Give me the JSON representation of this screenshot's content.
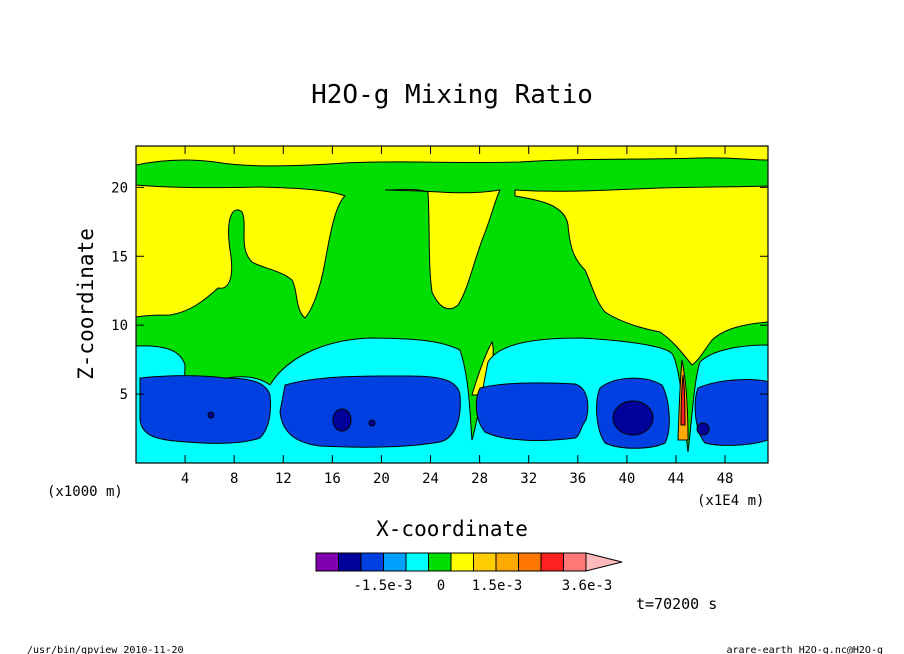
{
  "chart_data": {
    "type": "contour",
    "title": "H2O-g Mixing Ratio",
    "xlabel": "X-coordinate",
    "ylabel": "Z-coordinate",
    "x_unit_label": "(x1000 m)",
    "x_scale_label": "(x1E4 m)",
    "xlim": [
      0,
      51.5
    ],
    "ylim": [
      0,
      23
    ],
    "x_ticks": [
      4,
      8,
      12,
      16,
      20,
      24,
      28,
      32,
      36,
      40,
      44,
      48
    ],
    "y_ticks": [
      5,
      10,
      15,
      20
    ],
    "colorbar": {
      "colors": [
        "#8000b0",
        "#00009a",
        "#0040e0",
        "#00a0ff",
        "#00ffff",
        "#00dd00",
        "#ffff00",
        "#ffcc00",
        "#ffaa00",
        "#ff7700",
        "#ff2020",
        "#ff7777",
        "#ffbbbb"
      ],
      "tick_labels": [
        "-1.5e-3",
        "0",
        "1.5e-3",
        "3.6e-3"
      ]
    },
    "grid": false,
    "legend": "colorbar bottom"
  },
  "time_label": "t=70200 s",
  "footer": {
    "left": "/usr/bin/gpview  2010-11-20",
    "right": "arare-earth_H2O-g.nc@H2O-g"
  }
}
